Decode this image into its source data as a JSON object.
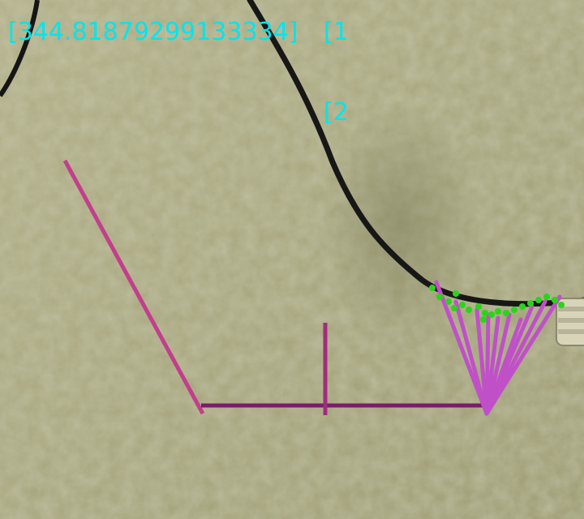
{
  "scene": {
    "description_colors": {
      "wall": "#a9a981",
      "wall_shadow": "#8e8e68",
      "cable": "#141414",
      "overlay_text": "#00e5ee",
      "magenta_line": "#c23f8c",
      "purple_line": "#7a1c6c",
      "violet_fan": "#c050c8",
      "green_points": "#2ad41a"
    }
  },
  "readouts": {
    "left": "[344.81879299133334]",
    "right_top": "[1",
    "right_bottom": "[2"
  },
  "geometry_data": {
    "baseline_value": 500,
    "fan_count": 10
  }
}
